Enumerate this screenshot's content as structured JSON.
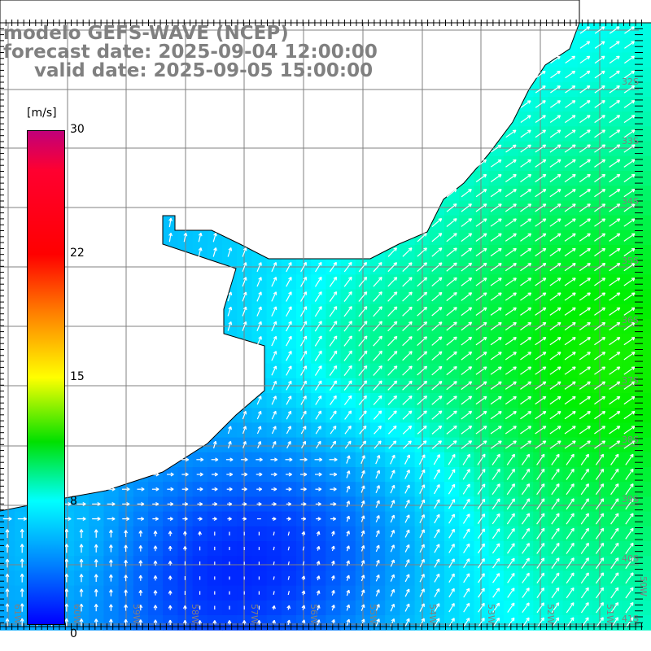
{
  "header": {
    "line1": "modelo GEFS-WAVE (NCEP)",
    "line2": "forecast date: 2025-09-04 12:00:00",
    "line3": "valid date: 2025-09-05 15:00:00"
  },
  "colorbar": {
    "unit": "[m/s]",
    "ticks": [
      "30",
      "22",
      "15",
      "8",
      "0"
    ],
    "tick_values": [
      30,
      22,
      15,
      8,
      0
    ]
  },
  "axes": {
    "longitudes": [
      "61W",
      "60W",
      "59W",
      "58W",
      "57W",
      "56W",
      "55W",
      "54W",
      "53W",
      "52W",
      "51W",
      "50W"
    ],
    "latitudes": [
      "32S",
      "33S",
      "34S",
      "35S",
      "36S",
      "37S",
      "38S",
      "39S",
      "40S",
      "41S"
    ]
  },
  "colors": {
    "land": "#ffffff",
    "grid": "#808080",
    "coast": "#000000",
    "arrow": "#ffffff",
    "label": "#808080"
  }
}
